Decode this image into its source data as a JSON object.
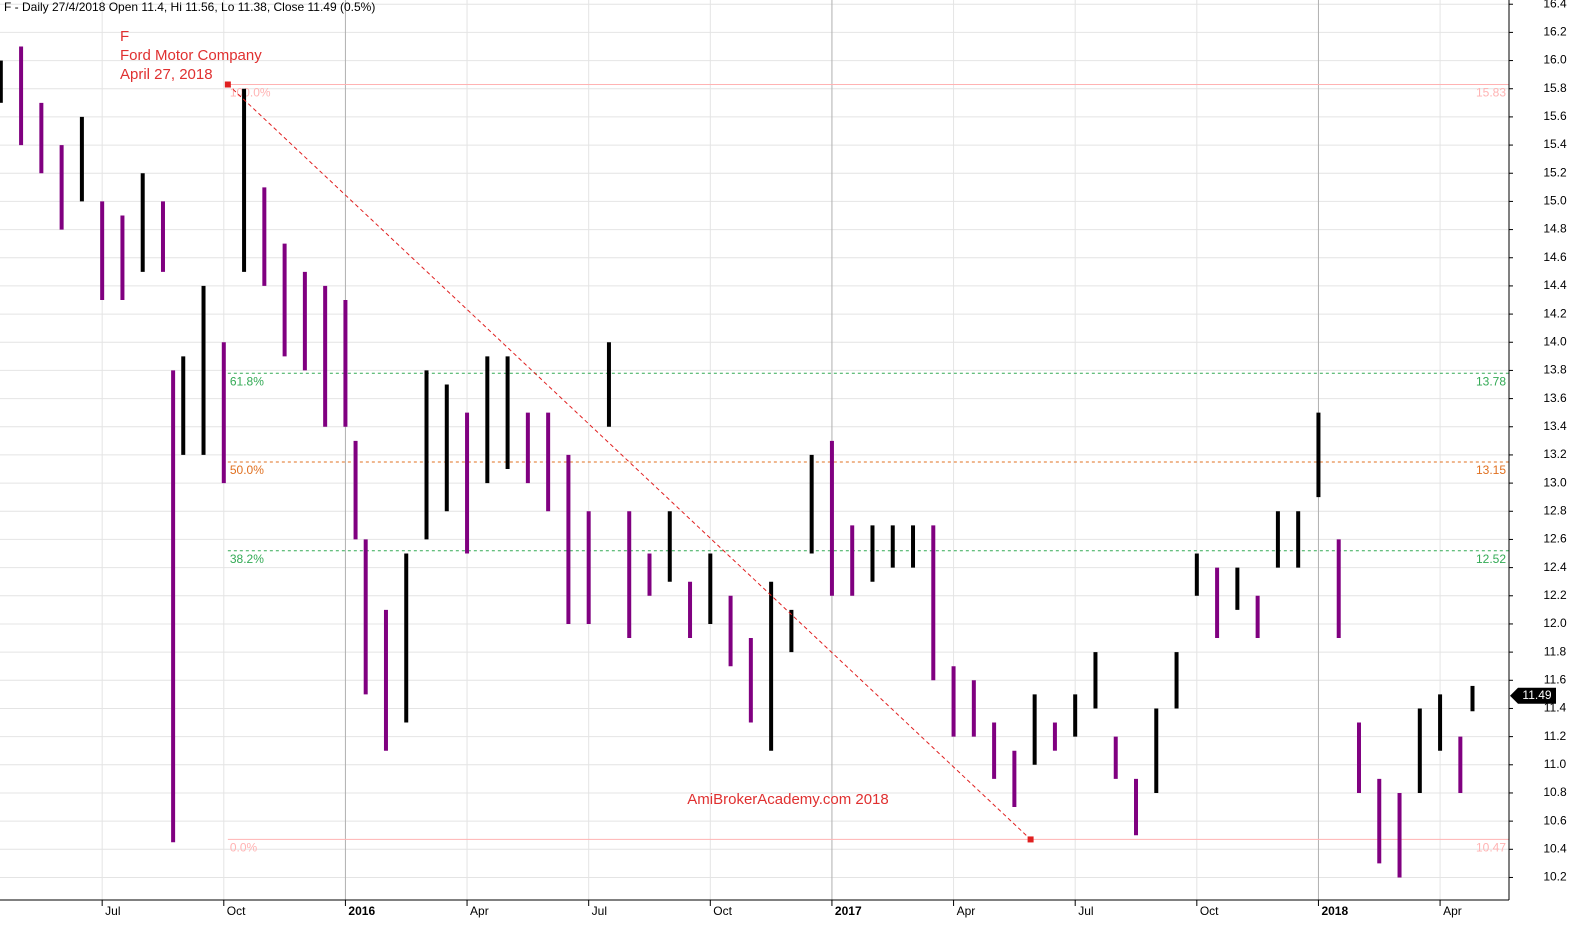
{
  "chart_data": {
    "type": "range-bar",
    "header": "F - Daily 27/4/2018 Open 11.4, Hi 11.56, Lo 11.38, Close 11.49 (0.5%)",
    "annotations": [
      "F",
      "Ford Motor Company",
      "April 27, 2018"
    ],
    "watermark": "AmiBrokerAcademy.com  2018",
    "last_price": 11.49,
    "up_color": "#000000",
    "down_color": "#800080",
    "x": [
      -2.5,
      -2,
      -1.5,
      -1,
      -0.5,
      0,
      0.5,
      1,
      1.5,
      1.75,
      2,
      2.5,
      3,
      3.5,
      4,
      4.5,
      5,
      5.5,
      6,
      6.25,
      6.5,
      7,
      7.5,
      8,
      8.5,
      9,
      9.5,
      10,
      10.5,
      11,
      11.5,
      12,
      12.5,
      13,
      13.5,
      14,
      14.5,
      15,
      15.5,
      16,
      16.5,
      17,
      17.5,
      18,
      18.5,
      19,
      19.5,
      20,
      20.5,
      21,
      21.5,
      22,
      22.5,
      23,
      23.5,
      24,
      24.5,
      25,
      25.5,
      26,
      26.5,
      27,
      27.5,
      28,
      28.5,
      29,
      29.5,
      30,
      30.5,
      31,
      31.5,
      32,
      32.5,
      33,
      33.5,
      33.8
    ],
    "high": [
      16.0,
      16.1,
      15.7,
      15.4,
      15.6,
      15.0,
      14.9,
      15.2,
      15.0,
      13.8,
      13.9,
      14.4,
      14.0,
      15.8,
      15.1,
      14.7,
      14.5,
      14.4,
      14.3,
      13.3,
      12.6,
      12.1,
      12.5,
      13.8,
      13.7,
      13.5,
      13.9,
      13.9,
      13.5,
      13.5,
      13.2,
      12.8,
      14.0,
      12.8,
      12.5,
      12.8,
      12.3,
      12.5,
      12.2,
      11.9,
      12.3,
      12.1,
      13.2,
      13.3,
      12.7,
      12.7,
      12.7,
      12.7,
      12.7,
      11.7,
      11.6,
      11.3,
      11.1,
      11.5,
      11.3,
      11.5,
      11.8,
      11.2,
      10.9,
      11.4,
      11.8,
      12.5,
      12.4,
      12.4,
      12.2,
      12.8,
      12.8,
      13.5,
      12.6,
      11.3,
      10.9,
      10.8,
      11.4,
      11.5,
      11.2,
      11.56
    ],
    "low": [
      15.7,
      15.4,
      15.2,
      14.8,
      15.0,
      14.3,
      14.3,
      14.5,
      14.5,
      10.45,
      13.2,
      13.2,
      13.0,
      14.5,
      14.4,
      13.9,
      13.8,
      13.4,
      13.4,
      12.6,
      11.5,
      11.1,
      11.3,
      12.6,
      12.8,
      12.5,
      13.0,
      13.1,
      13.0,
      12.8,
      12.0,
      12.0,
      13.4,
      11.9,
      12.2,
      12.3,
      11.9,
      12.0,
      11.7,
      11.3,
      11.1,
      11.8,
      12.5,
      12.2,
      12.2,
      12.3,
      12.4,
      12.4,
      11.6,
      11.2,
      11.2,
      10.9,
      10.7,
      11.0,
      11.1,
      11.2,
      11.4,
      10.9,
      10.5,
      10.8,
      11.4,
      12.2,
      11.9,
      12.1,
      11.9,
      12.4,
      12.4,
      12.9,
      11.9,
      10.8,
      10.3,
      10.2,
      10.8,
      11.1,
      10.8,
      11.38
    ],
    "xlim": [
      -2.52,
      34.7
    ],
    "xticks": [
      {
        "value": 0,
        "label": "Jul"
      },
      {
        "value": 3,
        "label": "Oct"
      },
      {
        "value": 6,
        "label": "2016"
      },
      {
        "value": 9,
        "label": "Apr"
      },
      {
        "value": 12,
        "label": "Jul"
      },
      {
        "value": 15,
        "label": "Oct"
      },
      {
        "value": 18,
        "label": "2017"
      },
      {
        "value": 21,
        "label": "Apr"
      },
      {
        "value": 24,
        "label": "Jul"
      },
      {
        "value": 27,
        "label": "Oct"
      },
      {
        "value": 30,
        "label": "2018"
      },
      {
        "value": 33,
        "label": "Apr"
      }
    ],
    "ylim": [
      10.04,
      16.43
    ],
    "yticks": [
      {
        "value": 10.2,
        "label": "10.2"
      },
      10.4,
      10.6,
      10.8,
      {
        "value": 11,
        "label": "11.0"
      },
      11.2,
      11.4,
      11.6,
      11.8,
      {
        "value": 12,
        "label": "12.0"
      },
      12.2,
      12.4,
      12.6,
      12.8,
      {
        "value": 13,
        "label": "13.0"
      },
      13.2,
      13.4,
      13.6,
      13.8,
      {
        "value": 14,
        "label": "14.0"
      },
      14.2,
      14.4,
      14.6,
      14.8,
      {
        "value": 15,
        "label": "15.0"
      },
      15.2,
      15.4,
      15.6,
      15.8,
      {
        "value": 16,
        "label": "16.0"
      },
      16.2,
      16.4
    ],
    "fib_levels": [
      {
        "label": "100.0%",
        "value": 15.83,
        "color": "#ffb3b3"
      },
      {
        "label": "61.8%",
        "value": 13.78,
        "color": "#33aa55"
      },
      {
        "label": "50.0%",
        "value": 13.15,
        "color": "#e07020"
      },
      {
        "label": "38.2%",
        "value": 12.52,
        "color": "#33aa55"
      },
      {
        "label": "0.0%",
        "value": 10.47,
        "color": "#ffb3b3"
      }
    ],
    "trend_line": {
      "x": [
        3.1,
        22.9
      ],
      "y": [
        15.83,
        10.47
      ],
      "color": "#e02020"
    },
    "grid": true
  }
}
